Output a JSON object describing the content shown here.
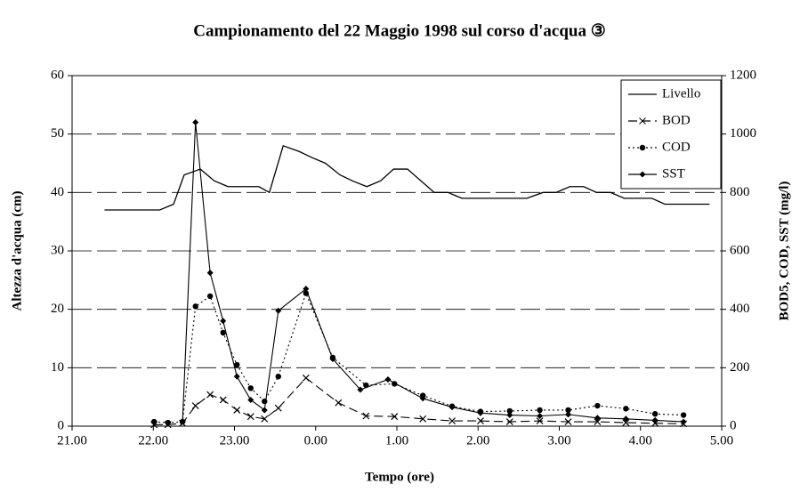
{
  "chart_data": {
    "type": "line",
    "title": "Campionamento del 22 Maggio 1998 sul corso d'acqua ③",
    "xlabel": "Tempo (ore)",
    "ylabel": "Altezza d'acqua (cm)",
    "y2label": "BOD5, COD, SST (mg/l)",
    "xlim": [
      21,
      29
    ],
    "xticks": [
      {
        "value": 21,
        "label": "21.00"
      },
      {
        "value": 22,
        "label": "22.00"
      },
      {
        "value": 23,
        "label": "23.00"
      },
      {
        "value": 24,
        "label": "0.00"
      },
      {
        "value": 25,
        "label": "1.00"
      },
      {
        "value": 26,
        "label": "2.00"
      },
      {
        "value": 27,
        "label": "3.00"
      },
      {
        "value": 28,
        "label": "4.00"
      },
      {
        "value": 29,
        "label": "5.00"
      }
    ],
    "ylim": [
      0,
      60
    ],
    "yticks": [
      0,
      10,
      20,
      30,
      40,
      50,
      60
    ],
    "y2lim": [
      0,
      1200
    ],
    "y2ticks": [
      0,
      200,
      400,
      600,
      800,
      1000,
      1200
    ],
    "grid": true,
    "legend": "top-right",
    "series": [
      {
        "name": "Livello",
        "color": "#000",
        "style": "solid",
        "marker": "none",
        "x": [
          21.4,
          22.08,
          22.25,
          22.38,
          22.58,
          22.75,
          22.92,
          23.1,
          23.3,
          23.43,
          23.6,
          23.8,
          23.95,
          24.12,
          24.3,
          24.45,
          24.63,
          24.8,
          24.96,
          25.13,
          25.46,
          25.63,
          25.8,
          26.6,
          26.8,
          26.96,
          27.13,
          27.3,
          27.46,
          27.63,
          27.8,
          28.14,
          28.3,
          28.46,
          28.85
        ],
        "values": [
          37,
          37,
          38,
          43,
          44,
          42,
          41,
          41,
          41,
          40,
          48,
          47,
          46,
          45,
          43,
          42,
          41,
          42,
          44,
          44,
          40,
          40,
          39,
          39,
          40,
          40,
          41,
          41,
          40,
          40,
          39,
          39,
          38,
          38,
          38
        ]
      },
      {
        "name": "BOD",
        "color": "#000",
        "style": "dashed",
        "marker": "x",
        "axis": "y2",
        "x": [
          22.01,
          22.18,
          22.36,
          22.52,
          22.7,
          22.86,
          23.03,
          23.2,
          23.37,
          23.54,
          23.88,
          24.28,
          24.62,
          24.97,
          25.32,
          25.68,
          26.03,
          26.39,
          26.76,
          27.11,
          27.47,
          27.82,
          28.18,
          28.53
        ],
        "values": [
          5,
          5,
          10,
          70,
          108,
          90,
          55,
          33,
          25,
          62,
          165,
          80,
          35,
          33,
          25,
          18,
          18,
          15,
          18,
          15,
          15,
          12,
          10,
          8
        ]
      },
      {
        "name": "COD",
        "color": "#000",
        "style": "dotted",
        "marker": "circle",
        "axis": "y2",
        "x": [
          22.01,
          22.18,
          22.36,
          22.52,
          22.7,
          22.86,
          23.03,
          23.2,
          23.37,
          23.54,
          23.88,
          24.21,
          24.62,
          24.97,
          25.32,
          25.68,
          26.03,
          26.39,
          26.76,
          27.11,
          27.47,
          27.82,
          28.18,
          28.53
        ],
        "values": [
          15,
          12,
          15,
          410,
          445,
          320,
          210,
          130,
          85,
          170,
          455,
          235,
          140,
          145,
          105,
          68,
          50,
          52,
          55,
          55,
          70,
          60,
          42,
          38
        ]
      },
      {
        "name": "SST",
        "color": "#000",
        "style": "solid",
        "marker": "diamond",
        "axis": "y2",
        "x": [
          22.36,
          22.52,
          22.7,
          22.86,
          23.03,
          23.2,
          23.37,
          23.54,
          23.88,
          24.21,
          24.55,
          24.89,
          25.32,
          25.68,
          26.03,
          26.39,
          26.76,
          27.11,
          27.47,
          27.82,
          28.18,
          28.53
        ],
        "values": [
          15,
          1040,
          525,
          360,
          170,
          90,
          55,
          395,
          470,
          230,
          125,
          160,
          95,
          65,
          45,
          38,
          35,
          40,
          28,
          25,
          20,
          15
        ]
      }
    ]
  }
}
